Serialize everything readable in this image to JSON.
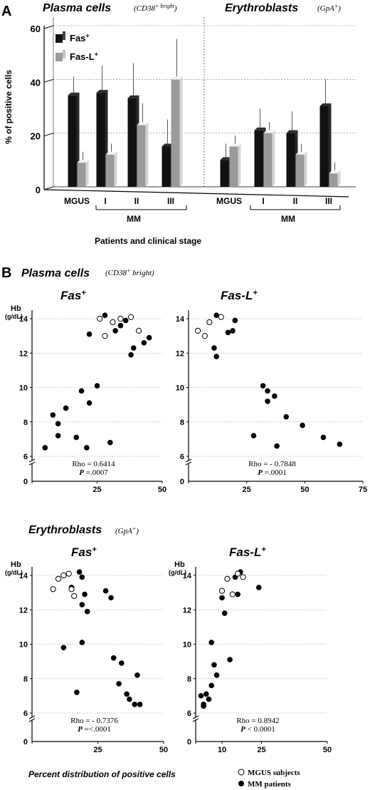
{
  "panel_a": {
    "letter": "A",
    "left_title": "Plasma cells",
    "left_subtitle_main": "(CD38",
    "left_subtitle_sup": "+ bright",
    "left_subtitle_close": ")",
    "right_title": "Erythroblasts",
    "right_subtitle_main": "(GpA",
    "right_subtitle_sup": "+",
    "right_subtitle_close": ")",
    "ylabel": "% of positive cells",
    "xlabel": "Patients and clinical stage",
    "mm_label": "MM",
    "legend_fas": "Fas",
    "legend_fas_sup": "+",
    "legend_fasl": "Fas-L",
    "legend_fasl_sup": "+"
  },
  "panel_b": {
    "letter": "B",
    "plasma_title": "Plasma cells",
    "plasma_sub": "(CD38",
    "plasma_sub_sup": "+",
    "plasma_sub_rest": " bright)",
    "ery_title": "Erythroblasts",
    "ery_sub": "(GpA",
    "ery_sub_sup": "+",
    "ery_sub_close": ")",
    "hb_label": "Hb",
    "hb_unit": "(g/dL)",
    "bottom_label": "Percent distribution of positive cells",
    "legend_mgus": "MGUS subjects",
    "legend_mm": "MM patients"
  },
  "chart_data": [
    {
      "type": "bar",
      "panel": "A-left",
      "title": "Plasma cells (CD38+ bright)",
      "categories": [
        "MGUS",
        "I",
        "II",
        "III"
      ],
      "group_label": "MM",
      "series": [
        {
          "name": "Fas+",
          "values": [
            34,
            35,
            33,
            15
          ],
          "errors": [
            6,
            9,
            12,
            9
          ],
          "color": "#111111"
        },
        {
          "name": "Fas-L+",
          "values": [
            9,
            12,
            23,
            40
          ],
          "errors": [
            3,
            3,
            7,
            14
          ],
          "color": "#9a9a9a"
        }
      ],
      "ylabel": "% of positive cells",
      "xlabel": "Patients and clinical stage",
      "ylim": [
        0,
        60
      ],
      "yticks": [
        0,
        20,
        40,
        60
      ]
    },
    {
      "type": "bar",
      "panel": "A-right",
      "title": "Erythroblasts (GpA+)",
      "categories": [
        "MGUS",
        "I",
        "II",
        "III"
      ],
      "group_label": "MM",
      "series": [
        {
          "name": "Fas+",
          "values": [
            10,
            21,
            20,
            30
          ],
          "errors": [
            5,
            7,
            7,
            9
          ],
          "color": "#111111"
        },
        {
          "name": "Fas-L+",
          "values": [
            15,
            20,
            12,
            5
          ],
          "errors": [
            3,
            3,
            3,
            3
          ],
          "color": "#9a9a9a"
        }
      ],
      "ylim": [
        0,
        60
      ]
    },
    {
      "type": "scatter",
      "panel": "B-plasma-fas",
      "title": "Fas+",
      "ylabel": "Hb",
      "yunit": "(g/dL)",
      "xlim": [
        0,
        50
      ],
      "ylim": [
        6,
        14.8
      ],
      "xticks": [
        0,
        25,
        50
      ],
      "yticks": [
        6,
        8,
        10,
        12,
        14
      ],
      "stats": {
        "rho": "Rho = 0.6414",
        "p_pre": "P",
        "p_post": " =.0007"
      },
      "mgus": [
        [
          26,
          14
        ],
        [
          28,
          13
        ],
        [
          31,
          13.8
        ],
        [
          34,
          14
        ],
        [
          38,
          14.1
        ],
        [
          41,
          13.3
        ]
      ],
      "mm": [
        [
          28,
          14.2
        ],
        [
          32,
          13.3
        ],
        [
          34,
          13.6
        ],
        [
          36,
          13.9
        ],
        [
          38,
          11.9
        ],
        [
          39,
          12.3
        ],
        [
          43,
          12.6
        ],
        [
          45,
          12.9
        ],
        [
          22,
          13.1
        ],
        [
          25,
          10.1
        ],
        [
          19,
          9.8
        ],
        [
          22,
          9.1
        ],
        [
          13,
          8.8
        ],
        [
          8,
          8.4
        ],
        [
          10,
          7.9
        ],
        [
          10,
          7.2
        ],
        [
          17,
          7.1
        ],
        [
          5,
          6.5
        ],
        [
          21,
          6.5
        ],
        [
          30,
          6.8
        ]
      ]
    },
    {
      "type": "scatter",
      "panel": "B-plasma-fasl",
      "title": "Fas-L+",
      "xlim": [
        0,
        75
      ],
      "ylim": [
        6,
        14.8
      ],
      "xticks": [
        0,
        25,
        50,
        75
      ],
      "yticks": [
        6,
        8,
        10,
        12,
        14
      ],
      "stats": {
        "rho": "Rho = - 0.7848",
        "p_pre": "P",
        "p_post": " =.0001"
      },
      "mgus": [
        [
          4,
          13.3
        ],
        [
          7,
          13
        ],
        [
          9,
          13.8
        ],
        [
          14,
          14.1
        ]
      ],
      "mm": [
        [
          12,
          14.2
        ],
        [
          17,
          13.2
        ],
        [
          19,
          13.3
        ],
        [
          20,
          13.9
        ],
        [
          11,
          12.3
        ],
        [
          12,
          11.8
        ],
        [
          32,
          10.1
        ],
        [
          34,
          9.8
        ],
        [
          34,
          9.2
        ],
        [
          37,
          9.5
        ],
        [
          42,
          8.3
        ],
        [
          49,
          7.8
        ],
        [
          58,
          7.1
        ],
        [
          65,
          6.7
        ],
        [
          28,
          7.2
        ],
        [
          38,
          6.6
        ]
      ]
    },
    {
      "type": "scatter",
      "panel": "B-ery-fas",
      "title": "Fas+",
      "ylabel": "Hb",
      "yunit": "(g/dL)",
      "xlim": [
        0,
        50
      ],
      "ylim": [
        6,
        14.8
      ],
      "xticks": [
        0,
        25,
        50
      ],
      "yticks": [
        6,
        8,
        10,
        12,
        14
      ],
      "stats": {
        "rho": "Rho = - 0.7376",
        "p_pre": "P",
        "p_post": " =<.0001"
      },
      "mgus": [
        [
          8,
          13.2
        ],
        [
          10,
          13.8
        ],
        [
          12,
          14
        ],
        [
          14,
          14.1
        ],
        [
          15,
          13.2
        ],
        [
          16,
          12.8
        ]
      ],
      "mm": [
        [
          18,
          14.2
        ],
        [
          19,
          13.9
        ],
        [
          15,
          13.3
        ],
        [
          20,
          12.9
        ],
        [
          19,
          12.3
        ],
        [
          21,
          11.9
        ],
        [
          28,
          13.1
        ],
        [
          30,
          12.7
        ],
        [
          19,
          10.1
        ],
        [
          12,
          9.8
        ],
        [
          31,
          9.2
        ],
        [
          34,
          8.9
        ],
        [
          40,
          8.2
        ],
        [
          33,
          7.7
        ],
        [
          36,
          7.1
        ],
        [
          37,
          6.8
        ],
        [
          39,
          6.5
        ],
        [
          41,
          6.5
        ],
        [
          17,
          7.2
        ]
      ]
    },
    {
      "type": "scatter",
      "panel": "B-ery-fasl",
      "title": "Fas-L+",
      "xlim": [
        0,
        50
      ],
      "ylim": [
        6,
        14.8
      ],
      "xticks": [
        0,
        10,
        25,
        50
      ],
      "yticks": [
        6,
        8,
        10,
        12,
        14
      ],
      "stats": {
        "rho": "Rho = 0.8942",
        "p_pre": "P",
        "p_post": " < 0.0001"
      },
      "mgus": [
        [
          10,
          13.1
        ],
        [
          12,
          13.8
        ],
        [
          14,
          12.9
        ],
        [
          16,
          14.1
        ],
        [
          18,
          13.9
        ]
      ],
      "mm": [
        [
          17,
          14.2
        ],
        [
          15,
          13.9
        ],
        [
          10,
          12.7
        ],
        [
          16,
          12.9
        ],
        [
          24,
          13.3
        ],
        [
          11,
          11.8
        ],
        [
          6,
          10.1
        ],
        [
          7,
          8.8
        ],
        [
          8,
          8.2
        ],
        [
          13,
          9.1
        ],
        [
          6,
          7.6
        ],
        [
          4,
          7.1
        ],
        [
          2,
          7
        ],
        [
          5,
          6.8
        ],
        [
          3,
          6.5
        ],
        [
          3,
          6.4
        ]
      ]
    }
  ]
}
